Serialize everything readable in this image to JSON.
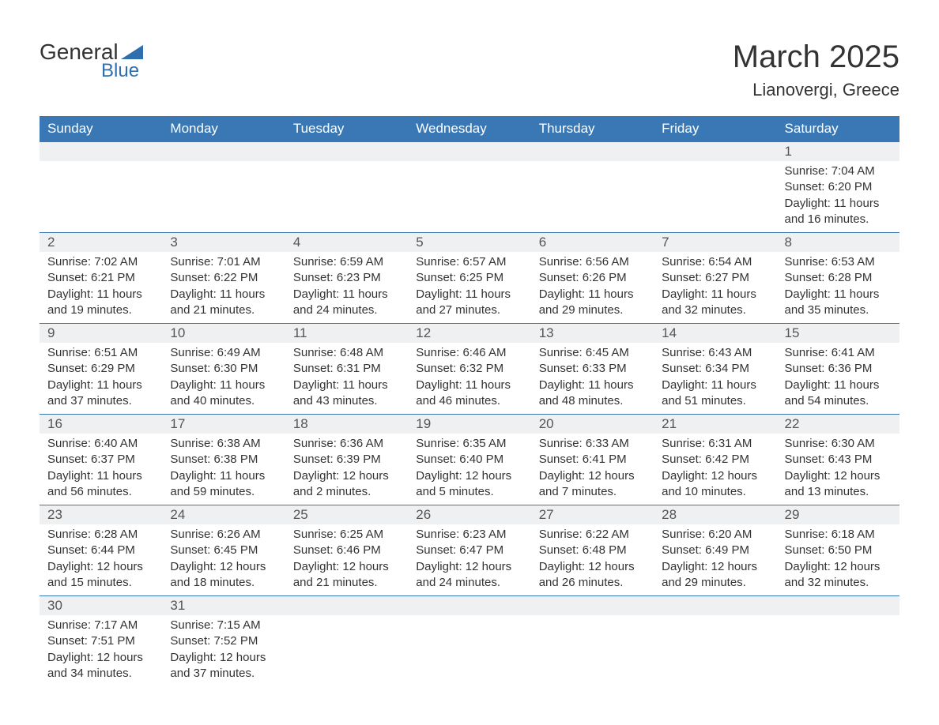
{
  "brand": {
    "word1": "General",
    "word2": "Blue",
    "accent": "#2f6fad",
    "text_color": "#333333"
  },
  "title": "March 2025",
  "location": "Lianovergi, Greece",
  "colors": {
    "header_bg": "#3a78b5",
    "header_text": "#ffffff",
    "daynum_bg": "#eef0f2",
    "border": "#3a78b5",
    "body_text": "#333333",
    "background": "#ffffff"
  },
  "font": {
    "family": "Arial",
    "title_size": 40,
    "location_size": 22,
    "header_size": 17,
    "daynum_size": 17,
    "detail_size": 15
  },
  "day_headers": [
    "Sunday",
    "Monday",
    "Tuesday",
    "Wednesday",
    "Thursday",
    "Friday",
    "Saturday"
  ],
  "weeks": [
    [
      {},
      {},
      {},
      {},
      {},
      {},
      {
        "n": "1",
        "sunrise": "Sunrise: 7:04 AM",
        "sunset": "Sunset: 6:20 PM",
        "dl1": "Daylight: 11 hours",
        "dl2": "and 16 minutes."
      }
    ],
    [
      {
        "n": "2",
        "sunrise": "Sunrise: 7:02 AM",
        "sunset": "Sunset: 6:21 PM",
        "dl1": "Daylight: 11 hours",
        "dl2": "and 19 minutes."
      },
      {
        "n": "3",
        "sunrise": "Sunrise: 7:01 AM",
        "sunset": "Sunset: 6:22 PM",
        "dl1": "Daylight: 11 hours",
        "dl2": "and 21 minutes."
      },
      {
        "n": "4",
        "sunrise": "Sunrise: 6:59 AM",
        "sunset": "Sunset: 6:23 PM",
        "dl1": "Daylight: 11 hours",
        "dl2": "and 24 minutes."
      },
      {
        "n": "5",
        "sunrise": "Sunrise: 6:57 AM",
        "sunset": "Sunset: 6:25 PM",
        "dl1": "Daylight: 11 hours",
        "dl2": "and 27 minutes."
      },
      {
        "n": "6",
        "sunrise": "Sunrise: 6:56 AM",
        "sunset": "Sunset: 6:26 PM",
        "dl1": "Daylight: 11 hours",
        "dl2": "and 29 minutes."
      },
      {
        "n": "7",
        "sunrise": "Sunrise: 6:54 AM",
        "sunset": "Sunset: 6:27 PM",
        "dl1": "Daylight: 11 hours",
        "dl2": "and 32 minutes."
      },
      {
        "n": "8",
        "sunrise": "Sunrise: 6:53 AM",
        "sunset": "Sunset: 6:28 PM",
        "dl1": "Daylight: 11 hours",
        "dl2": "and 35 minutes."
      }
    ],
    [
      {
        "n": "9",
        "sunrise": "Sunrise: 6:51 AM",
        "sunset": "Sunset: 6:29 PM",
        "dl1": "Daylight: 11 hours",
        "dl2": "and 37 minutes."
      },
      {
        "n": "10",
        "sunrise": "Sunrise: 6:49 AM",
        "sunset": "Sunset: 6:30 PM",
        "dl1": "Daylight: 11 hours",
        "dl2": "and 40 minutes."
      },
      {
        "n": "11",
        "sunrise": "Sunrise: 6:48 AM",
        "sunset": "Sunset: 6:31 PM",
        "dl1": "Daylight: 11 hours",
        "dl2": "and 43 minutes."
      },
      {
        "n": "12",
        "sunrise": "Sunrise: 6:46 AM",
        "sunset": "Sunset: 6:32 PM",
        "dl1": "Daylight: 11 hours",
        "dl2": "and 46 minutes."
      },
      {
        "n": "13",
        "sunrise": "Sunrise: 6:45 AM",
        "sunset": "Sunset: 6:33 PM",
        "dl1": "Daylight: 11 hours",
        "dl2": "and 48 minutes."
      },
      {
        "n": "14",
        "sunrise": "Sunrise: 6:43 AM",
        "sunset": "Sunset: 6:34 PM",
        "dl1": "Daylight: 11 hours",
        "dl2": "and 51 minutes."
      },
      {
        "n": "15",
        "sunrise": "Sunrise: 6:41 AM",
        "sunset": "Sunset: 6:36 PM",
        "dl1": "Daylight: 11 hours",
        "dl2": "and 54 minutes."
      }
    ],
    [
      {
        "n": "16",
        "sunrise": "Sunrise: 6:40 AM",
        "sunset": "Sunset: 6:37 PM",
        "dl1": "Daylight: 11 hours",
        "dl2": "and 56 minutes."
      },
      {
        "n": "17",
        "sunrise": "Sunrise: 6:38 AM",
        "sunset": "Sunset: 6:38 PM",
        "dl1": "Daylight: 11 hours",
        "dl2": "and 59 minutes."
      },
      {
        "n": "18",
        "sunrise": "Sunrise: 6:36 AM",
        "sunset": "Sunset: 6:39 PM",
        "dl1": "Daylight: 12 hours",
        "dl2": "and 2 minutes."
      },
      {
        "n": "19",
        "sunrise": "Sunrise: 6:35 AM",
        "sunset": "Sunset: 6:40 PM",
        "dl1": "Daylight: 12 hours",
        "dl2": "and 5 minutes."
      },
      {
        "n": "20",
        "sunrise": "Sunrise: 6:33 AM",
        "sunset": "Sunset: 6:41 PM",
        "dl1": "Daylight: 12 hours",
        "dl2": "and 7 minutes."
      },
      {
        "n": "21",
        "sunrise": "Sunrise: 6:31 AM",
        "sunset": "Sunset: 6:42 PM",
        "dl1": "Daylight: 12 hours",
        "dl2": "and 10 minutes."
      },
      {
        "n": "22",
        "sunrise": "Sunrise: 6:30 AM",
        "sunset": "Sunset: 6:43 PM",
        "dl1": "Daylight: 12 hours",
        "dl2": "and 13 minutes."
      }
    ],
    [
      {
        "n": "23",
        "sunrise": "Sunrise: 6:28 AM",
        "sunset": "Sunset: 6:44 PM",
        "dl1": "Daylight: 12 hours",
        "dl2": "and 15 minutes."
      },
      {
        "n": "24",
        "sunrise": "Sunrise: 6:26 AM",
        "sunset": "Sunset: 6:45 PM",
        "dl1": "Daylight: 12 hours",
        "dl2": "and 18 minutes."
      },
      {
        "n": "25",
        "sunrise": "Sunrise: 6:25 AM",
        "sunset": "Sunset: 6:46 PM",
        "dl1": "Daylight: 12 hours",
        "dl2": "and 21 minutes."
      },
      {
        "n": "26",
        "sunrise": "Sunrise: 6:23 AM",
        "sunset": "Sunset: 6:47 PM",
        "dl1": "Daylight: 12 hours",
        "dl2": "and 24 minutes."
      },
      {
        "n": "27",
        "sunrise": "Sunrise: 6:22 AM",
        "sunset": "Sunset: 6:48 PM",
        "dl1": "Daylight: 12 hours",
        "dl2": "and 26 minutes."
      },
      {
        "n": "28",
        "sunrise": "Sunrise: 6:20 AM",
        "sunset": "Sunset: 6:49 PM",
        "dl1": "Daylight: 12 hours",
        "dl2": "and 29 minutes."
      },
      {
        "n": "29",
        "sunrise": "Sunrise: 6:18 AM",
        "sunset": "Sunset: 6:50 PM",
        "dl1": "Daylight: 12 hours",
        "dl2": "and 32 minutes."
      }
    ],
    [
      {
        "n": "30",
        "sunrise": "Sunrise: 7:17 AM",
        "sunset": "Sunset: 7:51 PM",
        "dl1": "Daylight: 12 hours",
        "dl2": "and 34 minutes."
      },
      {
        "n": "31",
        "sunrise": "Sunrise: 7:15 AM",
        "sunset": "Sunset: 7:52 PM",
        "dl1": "Daylight: 12 hours",
        "dl2": "and 37 minutes."
      },
      {},
      {},
      {},
      {},
      {}
    ]
  ]
}
